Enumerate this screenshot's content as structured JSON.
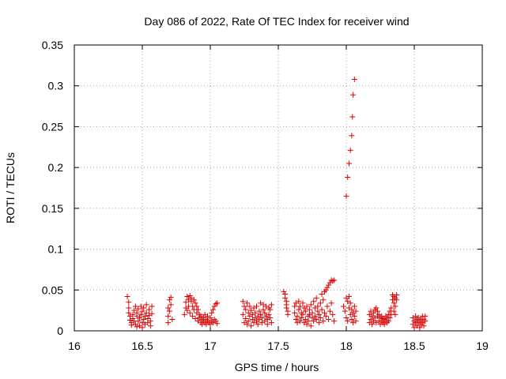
{
  "chart_data": {
    "type": "scatter",
    "title": "Day 086 of 2022, Rate Of TEC Index for receiver wind",
    "xlabel": "GPS time / hours",
    "ylabel": "ROTI / TECUs",
    "xlim": [
      16,
      19
    ],
    "ylim": [
      0,
      0.35
    ],
    "xticks": [
      16,
      16.5,
      17,
      17.5,
      18,
      18.5,
      19
    ],
    "xtick_labels": [
      "16",
      "16.5",
      "17",
      "17.5",
      "18",
      "18.5",
      "19"
    ],
    "yticks": [
      0,
      0.05,
      0.1,
      0.15,
      0.2,
      0.25,
      0.3,
      0.35
    ],
    "ytick_labels": [
      "0",
      "0.05",
      "0.1",
      "0.15",
      "0.2",
      "0.25",
      "0.3",
      "0.35"
    ],
    "grid": true,
    "marker": "+",
    "color": "#e00000",
    "series": [
      {
        "name": "ROTI",
        "points": [
          [
            16.39,
            0.042
          ],
          [
            16.4,
            0.035
          ],
          [
            16.4,
            0.028
          ],
          [
            16.4,
            0.022
          ],
          [
            16.41,
            0.018
          ],
          [
            16.41,
            0.013
          ],
          [
            16.42,
            0.01
          ],
          [
            16.42,
            0.007
          ],
          [
            16.43,
            0.02
          ],
          [
            16.43,
            0.015
          ],
          [
            16.44,
            0.012
          ],
          [
            16.44,
            0.025
          ],
          [
            16.45,
            0.03
          ],
          [
            16.45,
            0.008
          ],
          [
            16.46,
            0.018
          ],
          [
            16.46,
            0.022
          ],
          [
            16.47,
            0.027
          ],
          [
            16.47,
            0.012
          ],
          [
            16.48,
            0.016
          ],
          [
            16.48,
            0.006
          ],
          [
            16.49,
            0.02
          ],
          [
            16.49,
            0.03
          ],
          [
            16.5,
            0.024
          ],
          [
            16.5,
            0.01
          ],
          [
            16.51,
            0.014
          ],
          [
            16.51,
            0.028
          ],
          [
            16.52,
            0.018
          ],
          [
            16.52,
            0.008
          ],
          [
            16.53,
            0.022
          ],
          [
            16.53,
            0.032
          ],
          [
            16.54,
            0.015
          ],
          [
            16.54,
            0.01
          ],
          [
            16.55,
            0.026
          ],
          [
            16.55,
            0.019
          ],
          [
            16.56,
            0.012
          ],
          [
            16.56,
            0.006
          ],
          [
            16.57,
            0.021
          ],
          [
            16.57,
            0.03
          ],
          [
            16.46,
            0.005
          ],
          [
            16.5,
            0.004
          ],
          [
            16.69,
            0.028
          ],
          [
            16.69,
            0.018
          ],
          [
            16.69,
            0.01
          ],
          [
            16.7,
            0.038
          ],
          [
            16.7,
            0.024
          ],
          [
            16.71,
            0.041
          ],
          [
            16.71,
            0.032
          ],
          [
            16.72,
            0.014
          ],
          [
            16.81,
            0.02
          ],
          [
            16.82,
            0.028
          ],
          [
            16.82,
            0.035
          ],
          [
            16.83,
            0.042
          ],
          [
            16.83,
            0.025
          ],
          [
            16.84,
            0.038
          ],
          [
            16.84,
            0.03
          ],
          [
            16.85,
            0.043
          ],
          [
            16.85,
            0.022
          ],
          [
            16.86,
            0.036
          ],
          [
            16.86,
            0.04
          ],
          [
            16.87,
            0.03
          ],
          [
            16.87,
            0.018
          ],
          [
            16.88,
            0.038
          ],
          [
            16.88,
            0.026
          ],
          [
            16.89,
            0.034
          ],
          [
            16.89,
            0.015
          ],
          [
            16.9,
            0.03
          ],
          [
            16.9,
            0.022
          ],
          [
            16.91,
            0.026
          ],
          [
            16.91,
            0.012
          ],
          [
            16.92,
            0.02
          ],
          [
            16.92,
            0.016
          ],
          [
            16.93,
            0.01
          ],
          [
            16.93,
            0.018
          ],
          [
            16.94,
            0.014
          ],
          [
            16.94,
            0.008
          ],
          [
            16.95,
            0.016
          ],
          [
            16.95,
            0.012
          ],
          [
            16.96,
            0.02
          ],
          [
            16.96,
            0.01
          ],
          [
            16.97,
            0.014
          ],
          [
            16.97,
            0.008
          ],
          [
            16.98,
            0.018
          ],
          [
            16.98,
            0.012
          ],
          [
            16.99,
            0.01
          ],
          [
            17.0,
            0.016
          ],
          [
            17.0,
            0.008
          ],
          [
            17.01,
            0.012
          ],
          [
            17.01,
            0.022
          ],
          [
            17.02,
            0.026
          ],
          [
            17.02,
            0.01
          ],
          [
            17.03,
            0.03
          ],
          [
            17.03,
            0.014
          ],
          [
            17.04,
            0.033
          ],
          [
            17.04,
            0.012
          ],
          [
            17.05,
            0.034
          ],
          [
            17.05,
            0.009
          ],
          [
            17.24,
            0.036
          ],
          [
            17.24,
            0.02
          ],
          [
            17.25,
            0.03
          ],
          [
            17.25,
            0.01
          ],
          [
            17.26,
            0.026
          ],
          [
            17.26,
            0.015
          ],
          [
            17.27,
            0.034
          ],
          [
            17.27,
            0.008
          ],
          [
            17.28,
            0.022
          ],
          [
            17.28,
            0.012
          ],
          [
            17.29,
            0.03
          ],
          [
            17.29,
            0.018
          ],
          [
            17.3,
            0.025
          ],
          [
            17.3,
            0.006
          ],
          [
            17.31,
            0.02
          ],
          [
            17.31,
            0.014
          ],
          [
            17.32,
            0.028
          ],
          [
            17.32,
            0.01
          ],
          [
            17.33,
            0.022
          ],
          [
            17.33,
            0.016
          ],
          [
            17.34,
            0.012
          ],
          [
            17.34,
            0.03
          ],
          [
            17.35,
            0.018
          ],
          [
            17.35,
            0.008
          ],
          [
            17.36,
            0.024
          ],
          [
            17.36,
            0.014
          ],
          [
            17.37,
            0.034
          ],
          [
            17.37,
            0.02
          ],
          [
            17.38,
            0.016
          ],
          [
            17.38,
            0.01
          ],
          [
            17.39,
            0.026
          ],
          [
            17.39,
            0.032
          ],
          [
            17.4,
            0.022
          ],
          [
            17.4,
            0.012
          ],
          [
            17.41,
            0.03
          ],
          [
            17.41,
            0.018
          ],
          [
            17.42,
            0.014
          ],
          [
            17.42,
            0.008
          ],
          [
            17.43,
            0.028
          ],
          [
            17.43,
            0.02
          ],
          [
            17.44,
            0.016
          ],
          [
            17.44,
            0.026
          ],
          [
            17.45,
            0.01
          ],
          [
            17.45,
            0.032
          ],
          [
            17.54,
            0.048
          ],
          [
            17.55,
            0.045
          ],
          [
            17.55,
            0.04
          ],
          [
            17.56,
            0.036
          ],
          [
            17.56,
            0.032
          ],
          [
            17.56,
            0.028
          ],
          [
            17.57,
            0.024
          ],
          [
            17.57,
            0.02
          ],
          [
            17.62,
            0.03
          ],
          [
            17.62,
            0.022
          ],
          [
            17.63,
            0.014
          ],
          [
            17.63,
            0.034
          ],
          [
            17.64,
            0.018
          ],
          [
            17.64,
            0.01
          ],
          [
            17.65,
            0.026
          ],
          [
            17.65,
            0.036
          ],
          [
            17.66,
            0.03
          ],
          [
            17.66,
            0.012
          ],
          [
            17.67,
            0.022
          ],
          [
            17.67,
            0.016
          ],
          [
            17.68,
            0.034
          ],
          [
            17.68,
            0.02
          ],
          [
            17.69,
            0.01
          ],
          [
            17.69,
            0.028
          ],
          [
            17.7,
            0.014
          ],
          [
            17.7,
            0.024
          ],
          [
            17.71,
            0.03
          ],
          [
            17.71,
            0.008
          ],
          [
            17.72,
            0.018
          ],
          [
            17.72,
            0.012
          ],
          [
            17.73,
            0.026
          ],
          [
            17.73,
            0.02
          ],
          [
            17.74,
            0.032
          ],
          [
            17.74,
            0.006
          ],
          [
            17.75,
            0.016
          ],
          [
            17.75,
            0.022
          ],
          [
            17.76,
            0.036
          ],
          [
            17.76,
            0.012
          ],
          [
            17.77,
            0.028
          ],
          [
            17.77,
            0.018
          ],
          [
            17.78,
            0.014
          ],
          [
            17.78,
            0.04
          ],
          [
            17.79,
            0.024
          ],
          [
            17.79,
            0.03
          ],
          [
            17.8,
            0.01
          ],
          [
            17.8,
            0.02
          ],
          [
            17.81,
            0.034
          ],
          [
            17.81,
            0.016
          ],
          [
            17.82,
            0.026
          ],
          [
            17.82,
            0.045
          ],
          [
            17.83,
            0.012
          ],
          [
            17.83,
            0.038
          ],
          [
            17.84,
            0.022
          ],
          [
            17.84,
            0.048
          ],
          [
            17.85,
            0.018
          ],
          [
            17.85,
            0.05
          ],
          [
            17.86,
            0.03
          ],
          [
            17.86,
            0.053
          ],
          [
            17.87,
            0.014
          ],
          [
            17.87,
            0.056
          ],
          [
            17.88,
            0.059
          ],
          [
            17.88,
            0.024
          ],
          [
            17.89,
            0.062
          ],
          [
            17.9,
            0.061
          ],
          [
            17.91,
            0.062
          ],
          [
            17.89,
            0.034
          ],
          [
            17.9,
            0.02
          ],
          [
            17.91,
            0.012
          ],
          [
            18.0,
            0.165
          ],
          [
            18.01,
            0.188
          ],
          [
            18.02,
            0.205
          ],
          [
            18.03,
            0.221
          ],
          [
            18.04,
            0.239
          ],
          [
            18.045,
            0.262
          ],
          [
            18.05,
            0.289
          ],
          [
            18.06,
            0.308
          ],
          [
            17.98,
            0.03
          ],
          [
            17.99,
            0.024
          ],
          [
            18.0,
            0.04
          ],
          [
            18.0,
            0.016
          ],
          [
            18.01,
            0.036
          ],
          [
            18.01,
            0.012
          ],
          [
            18.02,
            0.042
          ],
          [
            18.02,
            0.028
          ],
          [
            18.03,
            0.02
          ],
          [
            18.03,
            0.034
          ],
          [
            18.04,
            0.014
          ],
          [
            18.04,
            0.026
          ],
          [
            18.05,
            0.022
          ],
          [
            18.05,
            0.01
          ],
          [
            18.06,
            0.03
          ],
          [
            18.06,
            0.018
          ],
          [
            18.07,
            0.012
          ],
          [
            18.07,
            0.024
          ],
          [
            18.17,
            0.02
          ],
          [
            18.17,
            0.01
          ],
          [
            18.18,
            0.014
          ],
          [
            18.18,
            0.024
          ],
          [
            18.19,
            0.018
          ],
          [
            18.19,
            0.008
          ],
          [
            18.2,
            0.022
          ],
          [
            18.2,
            0.012
          ],
          [
            18.21,
            0.026
          ],
          [
            18.21,
            0.016
          ],
          [
            18.22,
            0.028
          ],
          [
            18.22,
            0.01
          ],
          [
            18.23,
            0.024
          ],
          [
            18.23,
            0.018
          ],
          [
            18.24,
            0.02
          ],
          [
            18.24,
            0.012
          ],
          [
            18.25,
            0.016
          ],
          [
            18.25,
            0.008
          ],
          [
            18.26,
            0.012
          ],
          [
            18.26,
            0.018
          ],
          [
            18.27,
            0.01
          ],
          [
            18.27,
            0.015
          ],
          [
            18.28,
            0.008
          ],
          [
            18.28,
            0.014
          ],
          [
            18.29,
            0.012
          ],
          [
            18.29,
            0.018
          ],
          [
            18.3,
            0.016
          ],
          [
            18.3,
            0.01
          ],
          [
            18.31,
            0.02
          ],
          [
            18.31,
            0.012
          ],
          [
            18.32,
            0.024
          ],
          [
            18.32,
            0.016
          ],
          [
            18.33,
            0.028
          ],
          [
            18.33,
            0.02
          ],
          [
            18.34,
            0.044
          ],
          [
            18.34,
            0.038
          ],
          [
            18.35,
            0.042
          ],
          [
            18.35,
            0.034
          ],
          [
            18.36,
            0.04
          ],
          [
            18.36,
            0.03
          ],
          [
            18.37,
            0.038
          ],
          [
            18.37,
            0.044
          ],
          [
            18.35,
            0.024
          ],
          [
            18.36,
            0.02
          ],
          [
            18.49,
            0.016
          ],
          [
            18.49,
            0.008
          ],
          [
            18.5,
            0.012
          ],
          [
            18.5,
            0.004
          ],
          [
            18.51,
            0.018
          ],
          [
            18.51,
            0.01
          ],
          [
            18.52,
            0.014
          ],
          [
            18.52,
            0.006
          ],
          [
            18.53,
            0.016
          ],
          [
            18.53,
            0.01
          ],
          [
            18.54,
            0.012
          ],
          [
            18.54,
            0.004
          ],
          [
            18.55,
            0.014
          ],
          [
            18.55,
            0.008
          ],
          [
            18.56,
            0.018
          ],
          [
            18.56,
            0.01
          ],
          [
            18.57,
            0.014
          ],
          [
            18.57,
            0.006
          ],
          [
            18.58,
            0.018
          ],
          [
            18.58,
            0.012
          ]
        ]
      }
    ]
  }
}
